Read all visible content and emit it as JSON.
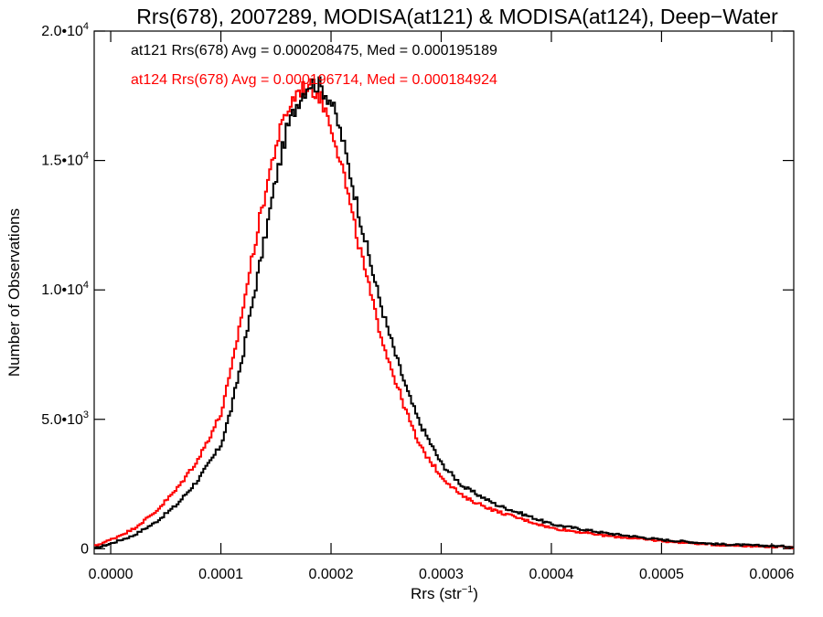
{
  "chart_data": {
    "type": "line",
    "title": "Rrs(678), 2007289, MODISA(at121) & MODISA(at124), Deep−Water",
    "xlabel": "Rrs (str",
    "xlabel_sup": "−1",
    "xlabel_end": ")",
    "ylabel": "Number of Observations",
    "xlim": [
      -1.5e-05,
      0.00062
    ],
    "ylim": [
      -200,
      20000
    ],
    "x_ticks": [
      {
        "value": 0.0,
        "label": "0.0000"
      },
      {
        "value": 0.0001,
        "label": "0.0001"
      },
      {
        "value": 0.0002,
        "label": "0.0002"
      },
      {
        "value": 0.0003,
        "label": "0.0003"
      },
      {
        "value": 0.0004,
        "label": "0.0004"
      },
      {
        "value": 0.0005,
        "label": "0.0005"
      },
      {
        "value": 0.0006,
        "label": "0.0006"
      }
    ],
    "y_ticks": [
      {
        "value": 0,
        "base": "0",
        "exp": ""
      },
      {
        "value": 5000,
        "base": "5.0•10",
        "exp": "3"
      },
      {
        "value": 10000,
        "base": "1.0•10",
        "exp": "4"
      },
      {
        "value": 15000,
        "base": "1.5•10",
        "exp": "4"
      },
      {
        "value": 20000,
        "base": "2.0•10",
        "exp": "4"
      }
    ],
    "legend": [
      {
        "text": "at121 Rrs(678) Avg = 0.000208475, Med = 0.000195189",
        "color": "#000000"
      },
      {
        "text": "at124 Rrs(678) Avg = 0.000196714, Med = 0.000184924",
        "color": "#ff0000"
      }
    ],
    "legend_position": "top-left",
    "series": [
      {
        "color": "#000000",
        "x": [
          -1.5e-05,
          0.0,
          2e-05,
          4e-05,
          6e-05,
          8e-05,
          0.0001,
          0.00011,
          0.00012,
          0.00013,
          0.00014,
          0.00015,
          0.00016,
          0.00017,
          0.00018,
          0.00019,
          0.0002,
          0.00021,
          0.00022,
          0.00023,
          0.00024,
          0.00025,
          0.00026,
          0.00027,
          0.00028,
          0.0003,
          0.00032,
          0.00035,
          0.0004,
          0.00045,
          0.0005,
          0.00055,
          0.00062
        ],
        "y": [
          0,
          200,
          500,
          1000,
          1700,
          2700,
          4000,
          5500,
          7500,
          9800,
          12000,
          14300,
          16200,
          17300,
          18000,
          17900,
          17300,
          15900,
          14000,
          12100,
          10300,
          8700,
          7300,
          6000,
          4900,
          3300,
          2400,
          1700,
          950,
          600,
          350,
          180,
          80
        ]
      },
      {
        "color": "#ff0000",
        "x": [
          -1.5e-05,
          0.0,
          2e-05,
          4e-05,
          6e-05,
          8e-05,
          0.0001,
          0.00011,
          0.00012,
          0.00013,
          0.00014,
          0.00015,
          0.00016,
          0.00017,
          0.00018,
          0.00019,
          0.0002,
          0.00021,
          0.00022,
          0.00023,
          0.00024,
          0.00025,
          0.00026,
          0.00027,
          0.00028,
          0.0003,
          0.00032,
          0.00035,
          0.0004,
          0.00045,
          0.0005,
          0.00055,
          0.00062
        ],
        "y": [
          100,
          350,
          750,
          1400,
          2300,
          3500,
          5200,
          7000,
          9300,
          11600,
          13700,
          15600,
          16900,
          17700,
          17900,
          17500,
          16400,
          14800,
          12700,
          10900,
          9100,
          7600,
          6300,
          5100,
          4000,
          2800,
          2000,
          1450,
          800,
          500,
          300,
          150,
          50
        ]
      }
    ]
  }
}
